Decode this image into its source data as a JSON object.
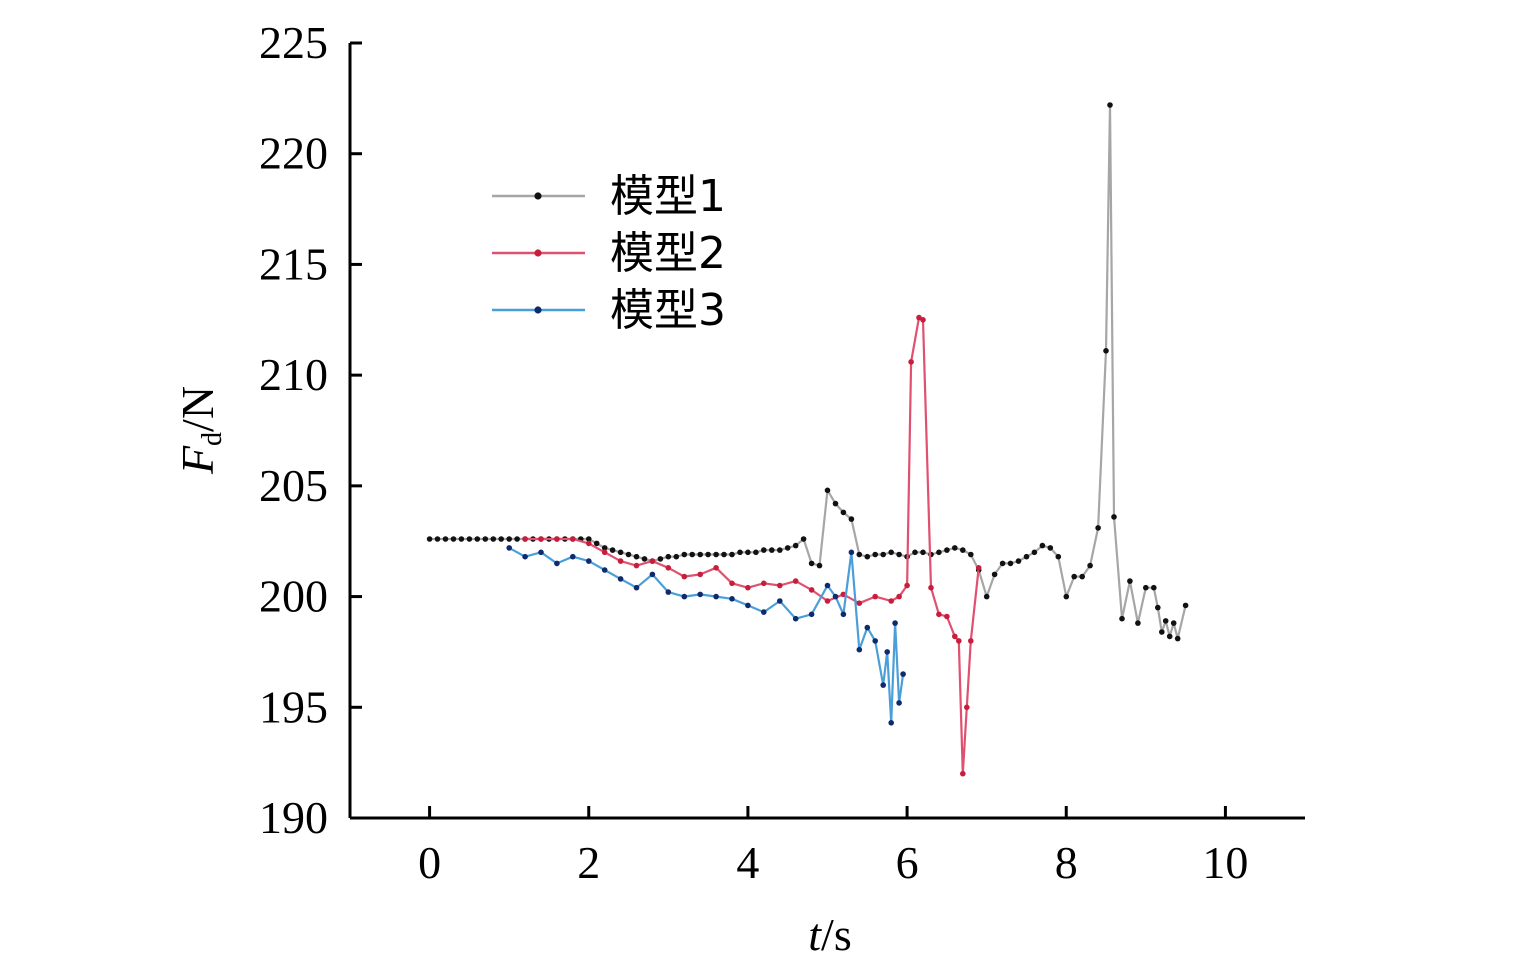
{
  "chart_data": {
    "type": "line",
    "title": "",
    "xlabel": {
      "var": "t",
      "unit": "/s"
    },
    "ylabel": {
      "var": "F",
      "sub": "d",
      "unit": "/N"
    },
    "xlim": [
      -1,
      11
    ],
    "ylim": [
      190,
      225
    ],
    "xticks": [
      0,
      2,
      4,
      6,
      8,
      10
    ],
    "yticks": [
      190,
      195,
      200,
      205,
      210,
      215,
      220,
      225
    ],
    "grid": false,
    "legend_position": "upper-left",
    "series": [
      {
        "name": "模型1",
        "line_color": "#a6a6a6",
        "marker_color": "#111111",
        "x": [
          0,
          0.1,
          0.2,
          0.3,
          0.4,
          0.5,
          0.6,
          0.7,
          0.8,
          0.9,
          1.0,
          1.1,
          1.2,
          1.3,
          1.4,
          1.5,
          1.6,
          1.7,
          1.8,
          1.9,
          2.0,
          2.1,
          2.2,
          2.3,
          2.4,
          2.5,
          2.6,
          2.7,
          2.8,
          2.9,
          3.0,
          3.1,
          3.2,
          3.3,
          3.4,
          3.5,
          3.6,
          3.7,
          3.8,
          3.9,
          4.0,
          4.1,
          4.2,
          4.3,
          4.4,
          4.5,
          4.6,
          4.7,
          4.8,
          4.9,
          5.0,
          5.1,
          5.2,
          5.3,
          5.4,
          5.5,
          5.6,
          5.7,
          5.8,
          5.9,
          6.0,
          6.1,
          6.2,
          6.3,
          6.4,
          6.5,
          6.6,
          6.7,
          6.8,
          6.9,
          7.0,
          7.1,
          7.2,
          7.3,
          7.4,
          7.5,
          7.6,
          7.7,
          7.8,
          7.9,
          8.0,
          8.1,
          8.2,
          8.3,
          8.4,
          8.5,
          8.55,
          8.6,
          8.7,
          8.8,
          8.9,
          9.0,
          9.1,
          9.15,
          9.2,
          9.25,
          9.3,
          9.35,
          9.4,
          9.5
        ],
        "y": [
          202.6,
          202.6,
          202.6,
          202.6,
          202.6,
          202.6,
          202.6,
          202.6,
          202.6,
          202.6,
          202.6,
          202.6,
          202.6,
          202.6,
          202.6,
          202.6,
          202.6,
          202.6,
          202.6,
          202.6,
          202.6,
          202.4,
          202.2,
          202.1,
          202.0,
          201.9,
          201.8,
          201.7,
          201.6,
          201.7,
          201.8,
          201.8,
          201.9,
          201.9,
          201.9,
          201.9,
          201.9,
          201.9,
          201.9,
          202.0,
          202.0,
          202.0,
          202.1,
          202.1,
          202.1,
          202.2,
          202.3,
          202.6,
          201.5,
          201.4,
          204.8,
          204.2,
          203.8,
          203.5,
          201.9,
          201.8,
          201.9,
          201.9,
          202.0,
          201.9,
          201.8,
          202.0,
          202.0,
          201.9,
          202.0,
          202.1,
          202.2,
          202.1,
          201.9,
          201.2,
          200.0,
          201.0,
          201.5,
          201.5,
          201.6,
          201.8,
          202.0,
          202.3,
          202.2,
          201.8,
          200.0,
          200.9,
          200.9,
          201.4,
          203.1,
          211.1,
          222.2,
          203.6,
          199.0,
          200.7,
          198.8,
          200.4,
          200.4,
          199.5,
          198.4,
          198.9,
          198.2,
          198.8,
          198.1,
          199.6
        ]
      },
      {
        "name": "模型2",
        "line_color": "#e05070",
        "marker_color": "#c81e3c",
        "x": [
          1.2,
          1.4,
          1.6,
          1.8,
          2.0,
          2.2,
          2.4,
          2.6,
          2.8,
          3.0,
          3.2,
          3.4,
          3.6,
          3.8,
          4.0,
          4.2,
          4.4,
          4.6,
          4.8,
          5.0,
          5.2,
          5.4,
          5.6,
          5.8,
          5.9,
          6.0,
          6.05,
          6.15,
          6.2,
          6.3,
          6.4,
          6.5,
          6.6,
          6.65,
          6.7,
          6.75,
          6.8,
          6.9
        ],
        "y": [
          202.6,
          202.6,
          202.6,
          202.6,
          202.4,
          202.0,
          201.6,
          201.4,
          201.6,
          201.3,
          200.9,
          201.0,
          201.3,
          200.6,
          200.4,
          200.6,
          200.5,
          200.7,
          200.3,
          199.8,
          200.1,
          199.7,
          200.0,
          199.8,
          200.0,
          200.5,
          210.6,
          212.6,
          212.5,
          200.4,
          199.2,
          199.1,
          198.2,
          198.0,
          192.0,
          195.0,
          198.0,
          201.3
        ]
      },
      {
        "name": "模型3",
        "line_color": "#4a9fd8",
        "marker_color": "#0f2a6e",
        "x": [
          1.0,
          1.2,
          1.4,
          1.6,
          1.8,
          2.0,
          2.2,
          2.4,
          2.6,
          2.8,
          3.0,
          3.2,
          3.4,
          3.6,
          3.8,
          4.0,
          4.2,
          4.4,
          4.6,
          4.8,
          5.0,
          5.1,
          5.2,
          5.3,
          5.4,
          5.5,
          5.6,
          5.7,
          5.75,
          5.8,
          5.85,
          5.9,
          5.95
        ],
        "y": [
          202.2,
          201.8,
          202.0,
          201.5,
          201.8,
          201.6,
          201.2,
          200.8,
          200.4,
          201.0,
          200.2,
          200.0,
          200.1,
          200.0,
          199.9,
          199.6,
          199.3,
          199.8,
          199.0,
          199.2,
          200.5,
          200.0,
          199.2,
          202.0,
          197.6,
          198.6,
          198.0,
          196.0,
          197.5,
          194.3,
          198.8,
          195.2,
          196.5
        ]
      }
    ]
  }
}
